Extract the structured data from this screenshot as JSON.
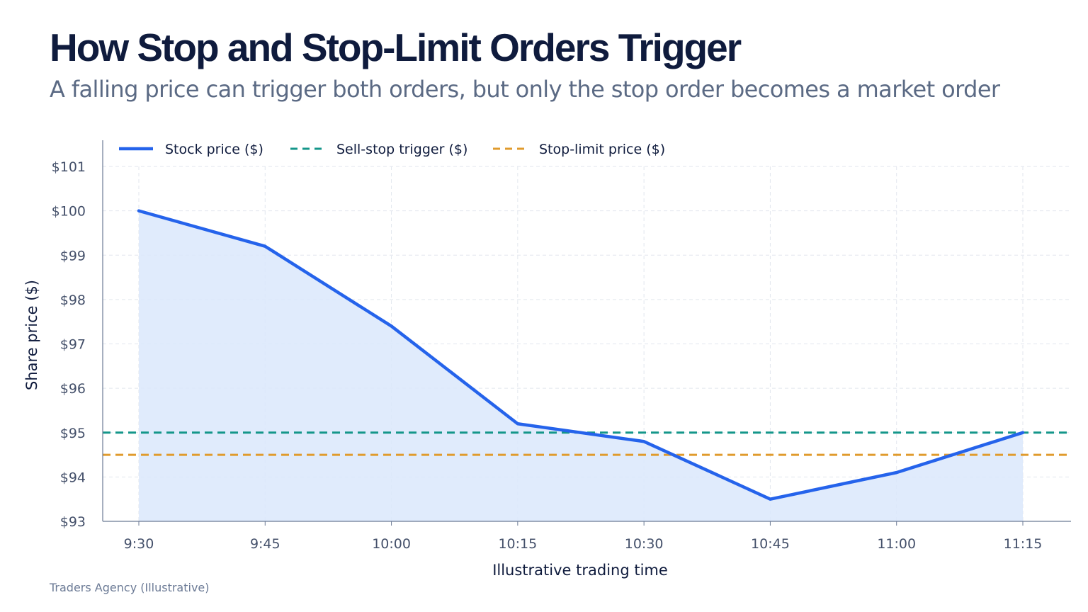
{
  "title": "How Stop and Stop-Limit Orders Trigger",
  "subtitle": "A falling price can trigger both orders, but only the stop order becomes a market order",
  "source": "Traders Agency (Illustrative)",
  "colors": {
    "price_line": "#2563eb",
    "price_fill": "#dbe8fb",
    "stop_trigger": "#14968a",
    "stop_limit": "#e09b2d",
    "grid": "#e2e6ee",
    "axis": "#6b7a95"
  },
  "chart_data": {
    "type": "line",
    "xlabel": "Illustrative trading time",
    "ylabel": "Share price ($)",
    "categories": [
      "9:30",
      "9:45",
      "10:00",
      "10:15",
      "10:30",
      "10:45",
      "11:00",
      "11:15"
    ],
    "ylim": [
      93,
      101
    ],
    "yticks": [
      93,
      94,
      95,
      96,
      97,
      98,
      99,
      100,
      101
    ],
    "ytick_labels": [
      "$93",
      "$94",
      "$95",
      "$96",
      "$97",
      "$98",
      "$99",
      "$100",
      "$101"
    ],
    "grid": true,
    "legend_position": "top-left",
    "series": [
      {
        "name": "Stock price ($)",
        "style": "solid-area",
        "values": [
          100.0,
          99.2,
          97.4,
          95.2,
          94.8,
          93.5,
          94.1,
          95.0
        ]
      },
      {
        "name": "Sell-stop trigger ($)",
        "style": "dashed",
        "values": [
          95.0,
          95.0,
          95.0,
          95.0,
          95.0,
          95.0,
          95.0,
          95.0
        ]
      },
      {
        "name": "Stop-limit price ($)",
        "style": "dashed",
        "values": [
          94.5,
          94.5,
          94.5,
          94.5,
          94.5,
          94.5,
          94.5,
          94.5
        ]
      }
    ]
  }
}
